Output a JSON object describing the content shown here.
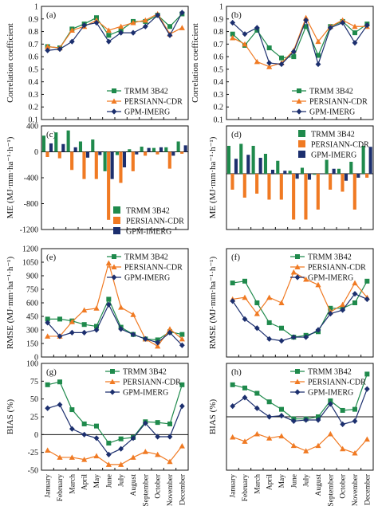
{
  "colors": {
    "trmm": "#1f8a4c",
    "persiann": "#f07a23",
    "gpm": "#1c2f6e",
    "axis": "#111111"
  },
  "months": [
    "January",
    "February",
    "March",
    "April",
    "May",
    "June",
    "July",
    "August",
    "September",
    "October",
    "November",
    "December"
  ],
  "chart_data": [
    {
      "id": "a",
      "type": "line",
      "panel_label": "(a)",
      "ylabel": "Correlation coefficient",
      "ylim": [
        0.1,
        1.0
      ],
      "yticks": [
        0.1,
        0.2,
        0.3,
        0.4,
        0.5,
        0.6,
        0.7,
        0.8,
        0.9,
        1.0
      ],
      "ytick_labels": [
        "0.1",
        "0.2",
        "0.3",
        "0.4",
        "0.5",
        "0.6",
        "0.7",
        "0.8",
        "0.9",
        "1"
      ],
      "legend": "bottom-right",
      "series": [
        {
          "name": "TRMM 3B42",
          "key": "trmm",
          "marker": "square",
          "values": [
            0.68,
            0.67,
            0.82,
            0.86,
            0.91,
            0.77,
            0.81,
            0.88,
            0.88,
            0.93,
            0.84,
            0.94
          ]
        },
        {
          "name": "PERSIANN-CDR",
          "key": "persiann",
          "marker": "triangle",
          "values": [
            0.68,
            0.67,
            0.81,
            0.84,
            0.89,
            0.81,
            0.84,
            0.87,
            0.89,
            0.94,
            0.78,
            0.83
          ]
        },
        {
          "name": "GPM-IMERG",
          "key": "gpm",
          "marker": "diamond",
          "values": [
            0.65,
            0.66,
            0.72,
            0.85,
            0.87,
            0.72,
            0.79,
            0.79,
            0.84,
            0.93,
            0.77,
            0.95
          ]
        }
      ]
    },
    {
      "id": "b",
      "type": "line",
      "panel_label": "(b)",
      "ylabel": "Correlation coefficient",
      "ylim": [
        0.1,
        1.0
      ],
      "yticks": [
        0.1,
        0.2,
        0.3,
        0.4,
        0.5,
        0.6,
        0.7,
        0.8,
        0.9,
        1.0
      ],
      "ytick_labels": [
        "0.1",
        "0.2",
        "0.3",
        "0.4",
        "0.5",
        "0.6",
        "0.7",
        "0.8",
        "0.9",
        "1"
      ],
      "legend": "bottom-right",
      "series": [
        {
          "name": "TRMM 3B42",
          "key": "trmm",
          "marker": "square",
          "values": [
            0.78,
            0.69,
            0.81,
            0.67,
            0.59,
            0.6,
            0.84,
            0.61,
            0.84,
            0.88,
            0.79,
            0.86
          ]
        },
        {
          "name": "PERSIANN-CDR",
          "key": "persiann",
          "marker": "triangle",
          "values": [
            0.75,
            0.7,
            0.56,
            0.52,
            0.55,
            0.65,
            0.91,
            0.72,
            0.84,
            0.89,
            0.84,
            0.84
          ]
        },
        {
          "name": "GPM-IMERG",
          "key": "gpm",
          "marker": "diamond",
          "values": [
            0.87,
            0.78,
            0.83,
            0.55,
            0.54,
            0.64,
            0.89,
            0.54,
            0.83,
            0.87,
            0.71,
            0.85
          ]
        }
      ]
    },
    {
      "id": "c",
      "type": "bar",
      "panel_label": "(c)",
      "ylabel": "ME (MJ·mm·ha⁻¹·h⁻¹)",
      "ylim": [
        -1200,
        400
      ],
      "yticks": [
        -1200,
        -800,
        -400,
        0,
        400
      ],
      "ytick_labels": [
        "-1200",
        "-800",
        "-400",
        "0",
        "400"
      ],
      "legend": "bottom-right",
      "series": [
        {
          "name": "TRMM 3B42",
          "key": "trmm",
          "values": [
            250,
            300,
            330,
            160,
            190,
            -300,
            -50,
            40,
            80,
            60,
            70,
            160
          ]
        },
        {
          "name": "PERSIANN-CDR",
          "key": "persiann",
          "values": [
            -80,
            -100,
            -280,
            -420,
            -420,
            -1050,
            -480,
            -300,
            -60,
            -40,
            -260,
            -30
          ]
        },
        {
          "name": "GPM-IMERG",
          "key": "gpm",
          "values": [
            130,
            120,
            70,
            -90,
            -50,
            -420,
            -240,
            -40,
            60,
            70,
            -60,
            100
          ]
        }
      ]
    },
    {
      "id": "d",
      "type": "bar",
      "panel_label": "(d)",
      "ylabel": "ME (MJ·mm·ha⁻¹·h⁻¹)",
      "ylim": [
        -2.8,
        2.4
      ],
      "yticks": [],
      "ytick_labels": [],
      "legend": "top-right",
      "series": [
        {
          "name": "TRMM 3B42",
          "key": "trmm",
          "values": [
            1.4,
            1.5,
            1.4,
            1.0,
            0.65,
            0.15,
            0.3,
            -0.05,
            0.7,
            0.25,
            0.6,
            1.4
          ]
        },
        {
          "name": "PERSIANN-CDR",
          "key": "persiann",
          "values": [
            -0.8,
            -1.2,
            -1.0,
            -1.3,
            -1.3,
            -2.3,
            -2.3,
            -1.8,
            -0.8,
            -0.9,
            -1.8,
            -0.2
          ]
        },
        {
          "name": "GPM-IMERG",
          "key": "gpm",
          "values": [
            0.75,
            0.95,
            0.8,
            0.2,
            0.15,
            -0.25,
            -0.3,
            0.0,
            0.25,
            -0.35,
            -0.2,
            1.35
          ]
        }
      ]
    },
    {
      "id": "e",
      "type": "line",
      "panel_label": "(e)",
      "ylabel": "RMSE (MJ·mm·ha⁻¹·h⁻¹)",
      "ylim": [
        0,
        1200
      ],
      "yticks": [
        0,
        150,
        300,
        450,
        600,
        750,
        900,
        1050,
        1200
      ],
      "ytick_labels": [
        "0",
        "150",
        "300",
        "450",
        "600",
        "750",
        "900",
        "1050",
        "1200"
      ],
      "legend": "top-right",
      "series": [
        {
          "name": "TRMM 3B42",
          "key": "trmm",
          "marker": "square",
          "values": [
            420,
            420,
            400,
            360,
            340,
            640,
            330,
            250,
            200,
            190,
            280,
            250
          ]
        },
        {
          "name": "PERSIANN-CDR",
          "key": "persiann",
          "marker": "triangle",
          "values": [
            230,
            230,
            390,
            520,
            540,
            1040,
            550,
            470,
            200,
            120,
            310,
            200
          ]
        },
        {
          "name": "GPM-IMERG",
          "key": "gpm",
          "marker": "diamond",
          "values": [
            380,
            230,
            270,
            270,
            300,
            580,
            310,
            250,
            200,
            160,
            270,
            130
          ]
        }
      ]
    },
    {
      "id": "f",
      "type": "line",
      "panel_label": "(f)",
      "ylabel": "RMSE (MJ·mm·ha⁻¹·h⁻¹)",
      "ylim": [
        0,
        3.0
      ],
      "yticks": [],
      "ytick_labels": [],
      "legend": "top-right",
      "series": [
        {
          "name": "TRMM 3B42",
          "key": "trmm",
          "marker": "square",
          "values": [
            2.05,
            2.1,
            1.5,
            0.95,
            0.8,
            0.55,
            0.6,
            0.7,
            1.35,
            1.35,
            1.5,
            2.1
          ]
        },
        {
          "name": "PERSIANN-CDR",
          "key": "persiann",
          "marker": "triangle",
          "values": [
            1.6,
            1.65,
            1.2,
            1.65,
            1.5,
            2.35,
            2.15,
            2.0,
            1.25,
            1.45,
            2.05,
            1.65
          ]
        },
        {
          "name": "GPM-IMERG",
          "key": "gpm",
          "marker": "diamond",
          "values": [
            1.55,
            1.05,
            0.8,
            0.5,
            0.45,
            0.55,
            0.55,
            0.75,
            1.2,
            1.3,
            1.75,
            1.6
          ]
        }
      ]
    },
    {
      "id": "g",
      "type": "line",
      "panel_label": "(g)",
      "ylabel": "BIAS (%)",
      "ylim": [
        -50,
        100
      ],
      "yticks": [
        -50,
        -25,
        0,
        25,
        50,
        75,
        100
      ],
      "ytick_labels": [
        "-50",
        "-25",
        "0",
        "25",
        "50",
        "75",
        "100"
      ],
      "legend": "top-right",
      "series": [
        {
          "name": "TRMM 3B42",
          "key": "trmm",
          "marker": "square",
          "values": [
            70,
            74,
            35,
            15,
            12,
            -12,
            -6,
            -4,
            18,
            17,
            15,
            70
          ]
        },
        {
          "name": "PERSIANN-CDR",
          "key": "persiann",
          "marker": "triangle",
          "values": [
            -22,
            -32,
            -32,
            -35,
            -30,
            -42,
            -42,
            -32,
            -24,
            -28,
            -38,
            -16
          ]
        },
        {
          "name": "GPM-IMERG",
          "key": "gpm",
          "marker": "diamond",
          "values": [
            37,
            42,
            8,
            0,
            -5,
            -28,
            -20,
            -5,
            16,
            -3,
            -3,
            40
          ]
        }
      ]
    },
    {
      "id": "h",
      "type": "line",
      "panel_label": "(h)",
      "ylabel": "BIAS (%)",
      "ylim": [
        -50,
        50
      ],
      "yticks": [],
      "ytick_labels": [],
      "legend": "top-right",
      "series": [
        {
          "name": "TRMM 3B42",
          "key": "trmm",
          "marker": "square",
          "values": [
            30,
            27,
            22,
            14,
            7,
            -2,
            -2,
            0,
            15,
            6,
            7,
            40
          ]
        },
        {
          "name": "PERSIANN-CDR",
          "key": "persiann",
          "marker": "triangle",
          "values": [
            -19,
            -23,
            -16,
            -20,
            -18,
            -27,
            -32,
            -27,
            -16,
            -30,
            -34,
            -21
          ]
        },
        {
          "name": "GPM-IMERG",
          "key": "gpm",
          "marker": "diamond",
          "values": [
            10,
            18,
            8,
            0,
            1,
            -4,
            -3,
            -3,
            12,
            -7,
            -4,
            26
          ]
        }
      ]
    }
  ]
}
